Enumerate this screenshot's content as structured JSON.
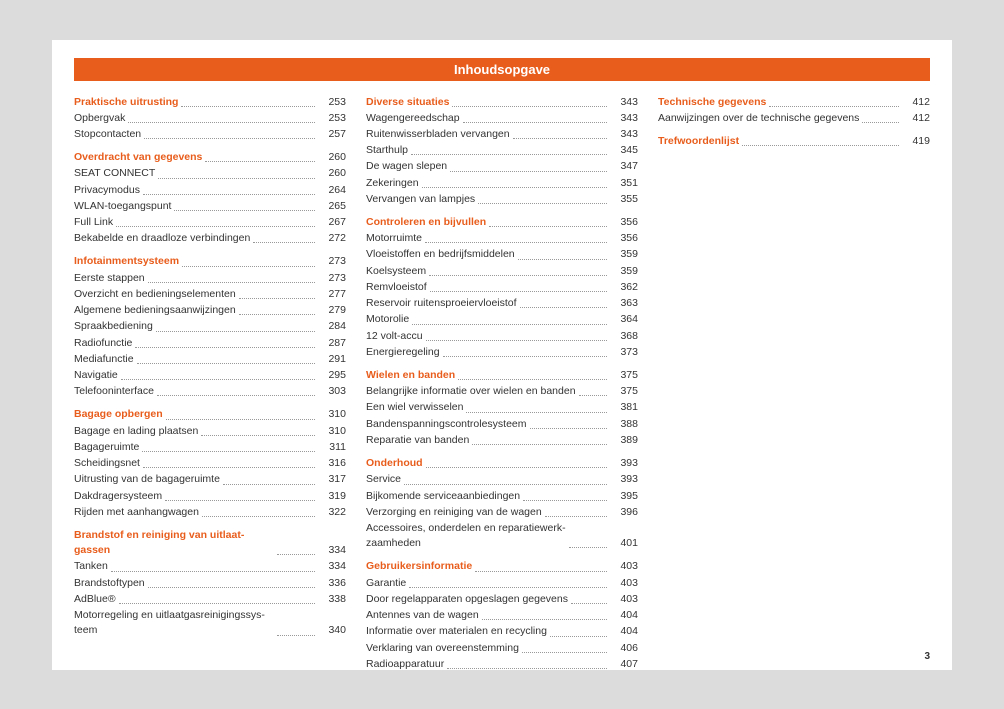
{
  "header": "Inhoudsopgave",
  "pageNumber": "3",
  "colors": {
    "accent": "#e85d1c",
    "text": "#333333",
    "pageBg": "#ffffff",
    "bodyBg": "#dcdcdc"
  },
  "columns": [
    [
      {
        "t": "s",
        "label": "Praktische uitrusting",
        "page": "253"
      },
      {
        "t": "e",
        "label": "Opbergvak",
        "page": "253"
      },
      {
        "t": "e",
        "label": "Stopcontacten",
        "page": "257"
      },
      {
        "t": "s",
        "label": "Overdracht van gegevens",
        "page": "260"
      },
      {
        "t": "e",
        "label": "SEAT CONNECT",
        "page": "260"
      },
      {
        "t": "e",
        "label": "Privacymodus",
        "page": "264"
      },
      {
        "t": "e",
        "label": "WLAN-toegangspunt",
        "page": "265"
      },
      {
        "t": "e",
        "label": "Full Link",
        "page": "267"
      },
      {
        "t": "e",
        "label": "Bekabelde en draadloze verbindingen",
        "page": "272"
      },
      {
        "t": "s",
        "label": "Infotainmentsysteem",
        "page": "273"
      },
      {
        "t": "e",
        "label": "Eerste stappen",
        "page": "273"
      },
      {
        "t": "e",
        "label": "Overzicht en bedieningselementen",
        "page": "277"
      },
      {
        "t": "e",
        "label": "Algemene bedieningsaanwijzingen",
        "page": "279"
      },
      {
        "t": "e",
        "label": "Spraakbediening",
        "page": "284"
      },
      {
        "t": "e",
        "label": "Radiofunctie",
        "page": "287"
      },
      {
        "t": "e",
        "label": "Mediafunctie",
        "page": "291"
      },
      {
        "t": "e",
        "label": "Navigatie",
        "page": "295"
      },
      {
        "t": "e",
        "label": "Telefooninterface",
        "page": "303"
      },
      {
        "t": "s",
        "label": "Bagage opbergen",
        "page": "310"
      },
      {
        "t": "e",
        "label": "Bagage en lading plaatsen",
        "page": "310"
      },
      {
        "t": "e",
        "label": "Bagageruimte",
        "page": "311"
      },
      {
        "t": "e",
        "label": "Scheidingsnet",
        "page": "316"
      },
      {
        "t": "e",
        "label": "Uitrusting van de bagageruimte",
        "page": "317"
      },
      {
        "t": "e",
        "label": "Dakdragersysteem",
        "page": "319"
      },
      {
        "t": "e",
        "label": "Rijden met aanhangwagen",
        "page": "322"
      },
      {
        "t": "s",
        "label": "Brandstof en reiniging van uitlaat­gassen",
        "page": "334",
        "wrap": true
      },
      {
        "t": "e",
        "label": "Tanken",
        "page": "334"
      },
      {
        "t": "e",
        "label": "Brandstoftypen",
        "page": "336"
      },
      {
        "t": "e",
        "label": "AdBlue®",
        "page": "338"
      },
      {
        "t": "e",
        "label": "Motorregeling en uitlaatgasreinigingssys­teem",
        "page": "340",
        "wrap": true
      }
    ],
    [
      {
        "t": "s",
        "label": "Diverse situaties",
        "page": "343"
      },
      {
        "t": "e",
        "label": "Wagengereedschap",
        "page": "343"
      },
      {
        "t": "e",
        "label": "Ruitenwisserbladen vervangen",
        "page": "343"
      },
      {
        "t": "e",
        "label": "Starthulp",
        "page": "345"
      },
      {
        "t": "e",
        "label": "De wagen slepen",
        "page": "347"
      },
      {
        "t": "e",
        "label": "Zekeringen",
        "page": "351"
      },
      {
        "t": "e",
        "label": "Vervangen van lampjes",
        "page": "355"
      },
      {
        "t": "s",
        "label": "Controleren en bijvullen",
        "page": "356"
      },
      {
        "t": "e",
        "label": "Motorruimte",
        "page": "356"
      },
      {
        "t": "e",
        "label": "Vloeistoffen en bedrijfsmiddelen",
        "page": "359"
      },
      {
        "t": "e",
        "label": "Koelsysteem",
        "page": "359"
      },
      {
        "t": "e",
        "label": "Remvloeistof",
        "page": "362"
      },
      {
        "t": "e",
        "label": "Reservoir ruitensproeiervloeistof",
        "page": "363"
      },
      {
        "t": "e",
        "label": "Motorolie",
        "page": "364"
      },
      {
        "t": "e",
        "label": "12 volt-accu",
        "page": "368"
      },
      {
        "t": "e",
        "label": "Energieregeling",
        "page": "373"
      },
      {
        "t": "s",
        "label": "Wielen en banden",
        "page": "375"
      },
      {
        "t": "e",
        "label": "Belangrijke informatie over wielen en banden",
        "page": "375"
      },
      {
        "t": "e",
        "label": "Een wiel verwisselen",
        "page": "381"
      },
      {
        "t": "e",
        "label": "Bandenspanningscontrolesysteem",
        "page": "388"
      },
      {
        "t": "e",
        "label": "Reparatie van banden",
        "page": "389"
      },
      {
        "t": "s",
        "label": "Onderhoud",
        "page": "393"
      },
      {
        "t": "e",
        "label": "Service",
        "page": "393"
      },
      {
        "t": "e",
        "label": "Bijkomende serviceaanbiedingen",
        "page": "395"
      },
      {
        "t": "e",
        "label": "Verzorging en reiniging van de wagen",
        "page": "396"
      },
      {
        "t": "e",
        "label": "Accessoires, onderdelen en reparatiewerk­zaamheden",
        "page": "401",
        "wrap": true
      },
      {
        "t": "s",
        "label": "Gebruikersinformatie",
        "page": "403"
      },
      {
        "t": "e",
        "label": "Garantie",
        "page": "403"
      },
      {
        "t": "e",
        "label": "Door regelapparaten opgeslagen gegevens",
        "page": "403"
      },
      {
        "t": "e",
        "label": "Antennes van de wagen",
        "page": "404"
      },
      {
        "t": "e",
        "label": "Informatie over materialen en recycling",
        "page": "404"
      },
      {
        "t": "e",
        "label": "Verklaring van overeenstemming",
        "page": "406"
      },
      {
        "t": "e",
        "label": "Radioapparatuur",
        "page": "407"
      }
    ],
    [
      {
        "t": "s",
        "label": "Technische gegevens",
        "page": "412"
      },
      {
        "t": "e",
        "label": "Aanwijzingen over de technische gegevens",
        "page": "412"
      },
      {
        "t": "s",
        "label": "Trefwoordenlijst",
        "page": "419"
      }
    ]
  ]
}
